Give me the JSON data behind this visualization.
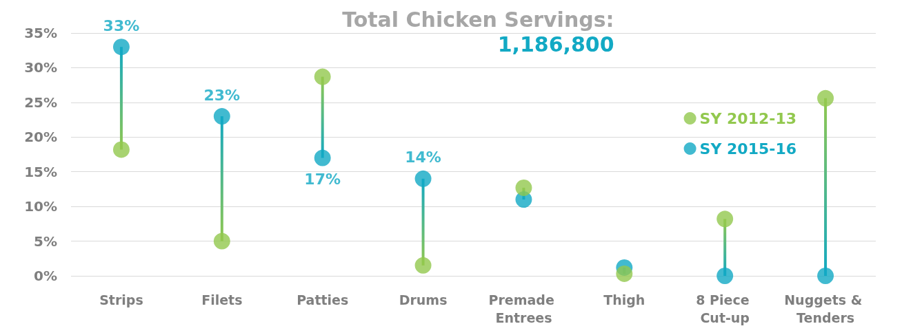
{
  "chart_data": {
    "type": "scatter",
    "title": "Total Chicken Servings:",
    "subtitle": "1,186,800",
    "categories": [
      "Strips",
      "Filets",
      "Patties",
      "Drums",
      "Premade Entrees",
      "Thigh",
      "8 Piece Cut-up",
      "Nuggets & Tenders"
    ],
    "series": [
      {
        "name": "SY 2012-13",
        "color": "#92c84e",
        "values": [
          18.2,
          5,
          28.7,
          1.5,
          12.7,
          0.3,
          8.2,
          25.6
        ]
      },
      {
        "name": "SY 2015-16",
        "color": "#12a9c4",
        "values": [
          33,
          23,
          17,
          14,
          11,
          1.2,
          0,
          0
        ],
        "value_labels": [
          "33%",
          "23%",
          "17%",
          "14%",
          null,
          null,
          null,
          null
        ]
      }
    ],
    "ylim": [
      0,
      35
    ],
    "yticks": [
      {
        "value": 0,
        "label": "0%"
      },
      {
        "value": 5,
        "label": "5%"
      },
      {
        "value": 10,
        "label": "10%"
      },
      {
        "value": 15,
        "label": "15%"
      },
      {
        "value": 20,
        "label": "20%"
      },
      {
        "value": 25,
        "label": "25%"
      },
      {
        "value": 30,
        "label": "30%"
      },
      {
        "value": 35,
        "label": "35%"
      }
    ],
    "grid": "y",
    "legend": "top right",
    "marker": "circle"
  }
}
